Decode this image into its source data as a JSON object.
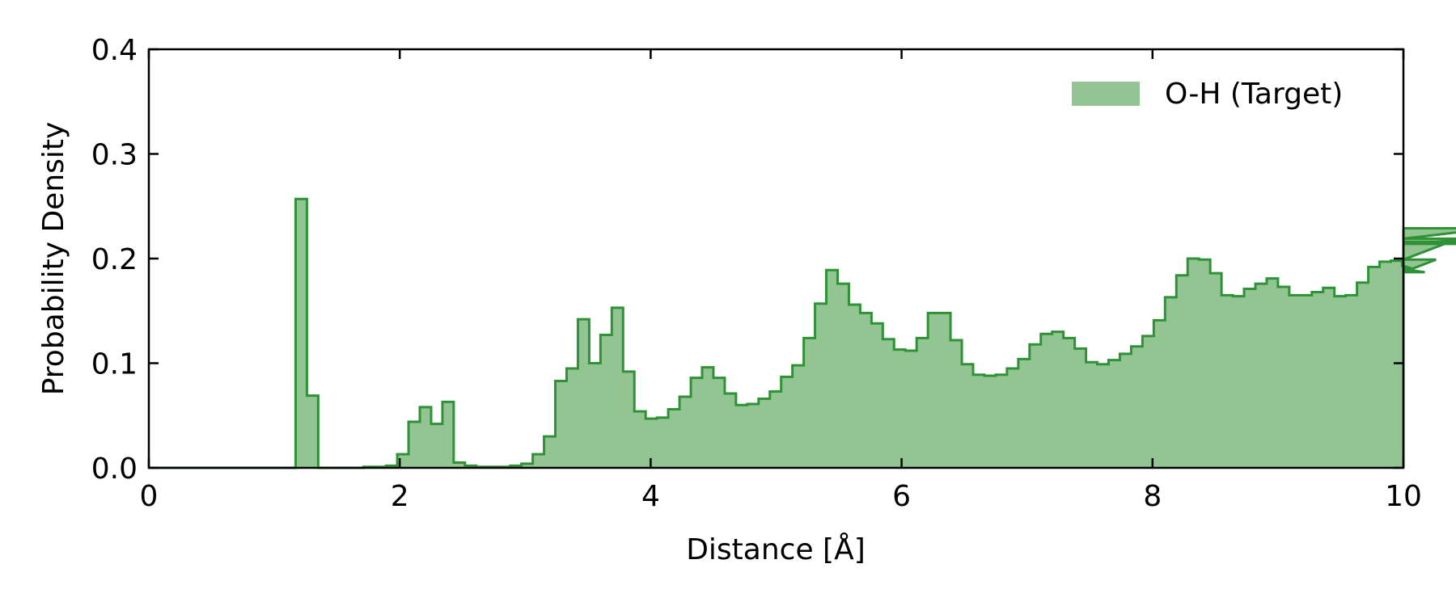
{
  "chart_data": {
    "type": "bar",
    "style": "step-histogram",
    "title": "",
    "xlabel": "Distance [Å]",
    "ylabel": "Probability Density",
    "xlim": [
      0,
      10
    ],
    "ylim": [
      0,
      0.4
    ],
    "xticks": [
      0,
      2,
      4,
      6,
      8,
      10
    ],
    "xtick_labels": [
      "0",
      "2",
      "4",
      "6",
      "8",
      "10"
    ],
    "yticks": [
      0.0,
      0.1,
      0.2,
      0.3,
      0.4
    ],
    "ytick_labels": [
      "0.0",
      "0.1",
      "0.2",
      "0.3",
      "0.4"
    ],
    "grid": false,
    "legend_position": "upper right",
    "series": [
      {
        "name": "O-H (Target)",
        "fill_color": "#93c593",
        "edge_color": "#2f9236",
        "bin_width": 0.09,
        "bin_start": 0.0,
        "values": [
          0,
          0,
          0,
          0,
          0,
          0,
          0,
          0,
          0,
          0,
          0,
          0,
          0,
          0.257,
          0.069,
          0,
          0,
          0,
          0,
          0.001,
          0.001,
          0.002,
          0.013,
          0.044,
          0.058,
          0.042,
          0.063,
          0.005,
          0.002,
          0.001,
          0.001,
          0.001,
          0.002,
          0.004,
          0.013,
          0.03,
          0.083,
          0.095,
          0.142,
          0.1,
          0.127,
          0.153,
          0.092,
          0.054,
          0.047,
          0.048,
          0.056,
          0.068,
          0.086,
          0.096,
          0.086,
          0.071,
          0.06,
          0.061,
          0.066,
          0.073,
          0.087,
          0.098,
          0.124,
          0.157,
          0.189,
          0.176,
          0.156,
          0.148,
          0.138,
          0.123,
          0.113,
          0.112,
          0.124,
          0.148,
          0.148,
          0.122,
          0.099,
          0.089,
          0.088,
          0.089,
          0.095,
          0.104,
          0.118,
          0.128,
          0.13,
          0.124,
          0.114,
          0.101,
          0.099,
          0.103,
          0.109,
          0.116,
          0.126,
          0.141,
          0.163,
          0.184,
          0.2,
          0.199,
          0.186,
          0.165,
          0.164,
          0.171,
          0.176,
          0.181,
          0.173,
          0.165,
          0.165,
          0.168,
          0.172,
          0.164,
          0.165,
          0.177,
          0.192,
          0.197,
          0.198,
          0.193,
          0.19,
          0.187,
          0.199,
          0.215,
          0.216,
          0.214,
          0.219,
          0.229
        ]
      }
    ]
  }
}
